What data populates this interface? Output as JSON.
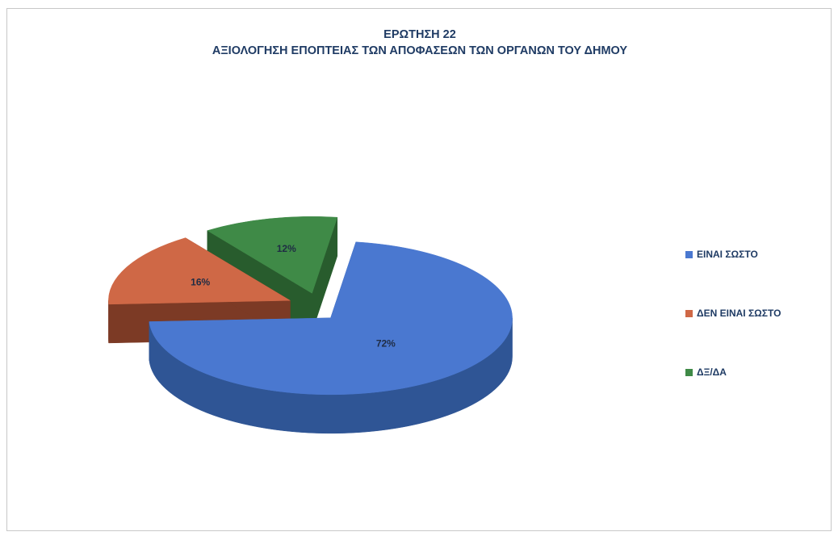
{
  "chart_data": {
    "type": "pie",
    "title": "ΕΡΩΤΗΣΗ 22",
    "subtitle": "ΑΞΙΟΛΟΓΗΣΗ ΕΠΟΠΤΕΙΑΣ ΤΩΝ ΑΠΟΦΑΣΕΩΝ ΤΩΝ ΟΡΓΑΝΩΝ ΤΟΥ ΔΗΜΟΥ",
    "style": "3d-exploded",
    "legend_position": "right",
    "slices": [
      {
        "label": "ΕΙΝΑΙ ΣΩΣΤΟ",
        "value": 72,
        "display": "72%",
        "color": "#4a78d0",
        "side_color": "#2f5595"
      },
      {
        "label": "ΔΕΝ ΕΙΝΑΙ ΣΩΣΤΟ",
        "value": 16,
        "display": "16%",
        "color": "#cf6846",
        "side_color": "#7c3a25"
      },
      {
        "label": "ΔΞ/ΔΑ",
        "value": 12,
        "display": "12%",
        "color": "#3f8a47",
        "side_color": "#285c2d"
      }
    ]
  }
}
